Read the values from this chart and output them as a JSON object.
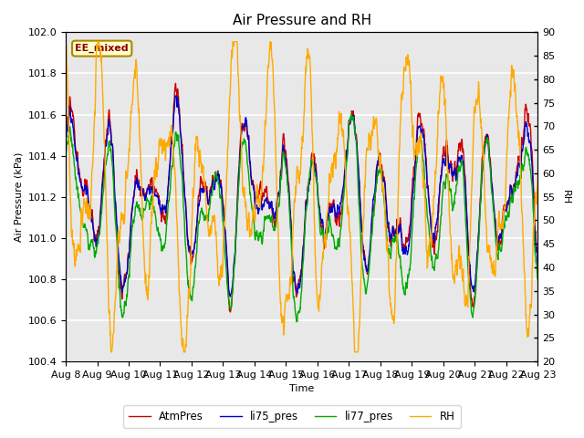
{
  "title": "Air Pressure and RH",
  "xlabel": "Time",
  "ylabel_left": "Air Pressure (kPa)",
  "ylabel_right": "RH",
  "ylim_left": [
    100.4,
    102.0
  ],
  "ylim_right": [
    20,
    90
  ],
  "yticks_left": [
    100.4,
    100.6,
    100.8,
    101.0,
    101.2,
    101.4,
    101.6,
    101.8,
    102.0
  ],
  "yticks_right": [
    20,
    25,
    30,
    35,
    40,
    45,
    50,
    55,
    60,
    65,
    70,
    75,
    80,
    85,
    90
  ],
  "colors": {
    "AtmPres": "#cc0000",
    "li75_pres": "#0000cc",
    "li77_pres": "#00aa00",
    "RH": "#ffaa00"
  },
  "linewidth": 1.0,
  "annotation_text": "EE_mixed",
  "annotation_color": "#880000",
  "annotation_bg": "#ffffcc",
  "annotation_border": "#aa8800",
  "plot_bg": "#e8e8e8",
  "fig_bg": "#ffffff",
  "grid_color": "#ffffff",
  "title_fontsize": 11,
  "label_fontsize": 8,
  "tick_fontsize": 8
}
